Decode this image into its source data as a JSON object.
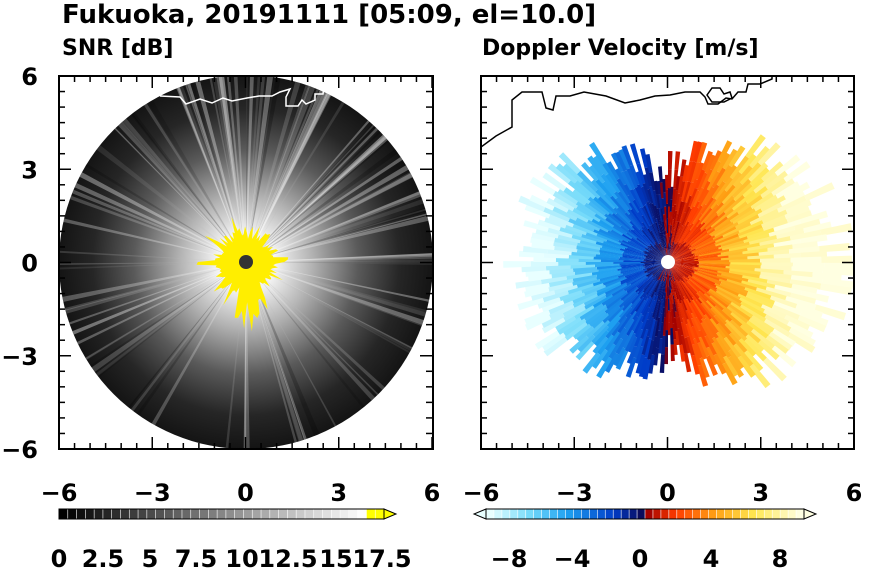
{
  "page": {
    "title": "Fukuoka, 20191111 [05:09, el=10.0]"
  },
  "chart_data": [
    {
      "type": "heatmap",
      "title": "SNR [dB]",
      "xlim": [
        -6,
        6
      ],
      "ylim": [
        -6,
        6
      ],
      "x_ticks": [
        "−6",
        "−3",
        "0",
        "3",
        "6"
      ],
      "y_ticks": [
        "6",
        "3",
        "0",
        "−3",
        "−6"
      ],
      "grid": false,
      "colorbar": {
        "min": 0,
        "max": 18.5,
        "step": 0.5,
        "extend": "max",
        "tick_labels": [
          "0",
          "2.5",
          "5",
          "7.5",
          "10",
          "12.5",
          "15",
          "17.5"
        ],
        "colors": [
          "#000000",
          "#ffffff",
          "#ffff00"
        ]
      },
      "range_radius_km": 6,
      "highest_values_color": "#ffee00"
    },
    {
      "type": "heatmap",
      "title": "Doppler Velocity [m/s]",
      "xlim": [
        -6,
        6
      ],
      "ylim": [
        -6,
        6
      ],
      "x_ticks": [
        "−6",
        "−3",
        "0",
        "3",
        "6"
      ],
      "grid": false,
      "colorbar": {
        "min": -10,
        "max": 10,
        "step": 0.5,
        "extend": "both",
        "tick_labels": [
          "−8",
          "−4",
          "0",
          "4",
          "8"
        ],
        "colors": [
          "#e6ffff",
          "#20c0f0",
          "#0030c0",
          "#000050",
          "#b00000",
          "#ff5000",
          "#ffd020",
          "#ffffe0"
        ]
      }
    }
  ],
  "colors": {
    "coastline": "#000000",
    "coastline_on_dark": "#ffffff",
    "radar_center_left": "#333333",
    "radar_center_right": "#ffffff"
  }
}
